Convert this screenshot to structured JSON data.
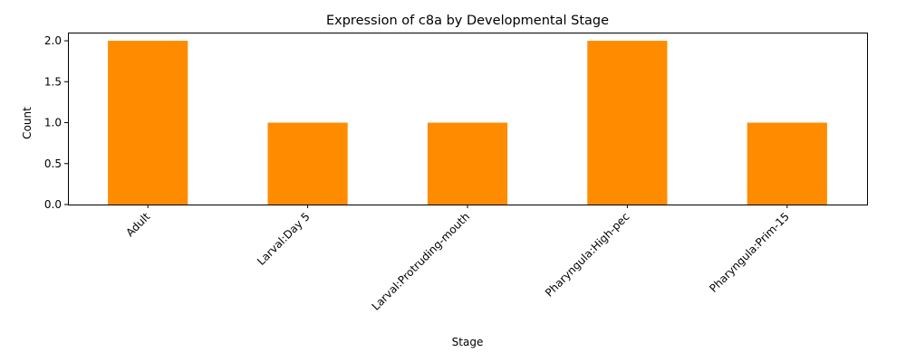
{
  "chart_data": {
    "type": "bar",
    "title": "Expression of c8a by Developmental Stage",
    "xlabel": "Stage",
    "ylabel": "Count",
    "categories": [
      "Adult",
      "Larval:Day 5",
      "Larval:Protruding-mouth",
      "Pharyngula:High-pec",
      "Pharyngula:Prim-15"
    ],
    "values": [
      2,
      1,
      1,
      2,
      1
    ],
    "ylim": [
      0,
      2.1
    ],
    "yticks": [
      "0.0",
      "0.5",
      "1.0",
      "1.5",
      "2.0"
    ],
    "bar_color": "#ff8c00",
    "grid": false,
    "legend": "none"
  }
}
